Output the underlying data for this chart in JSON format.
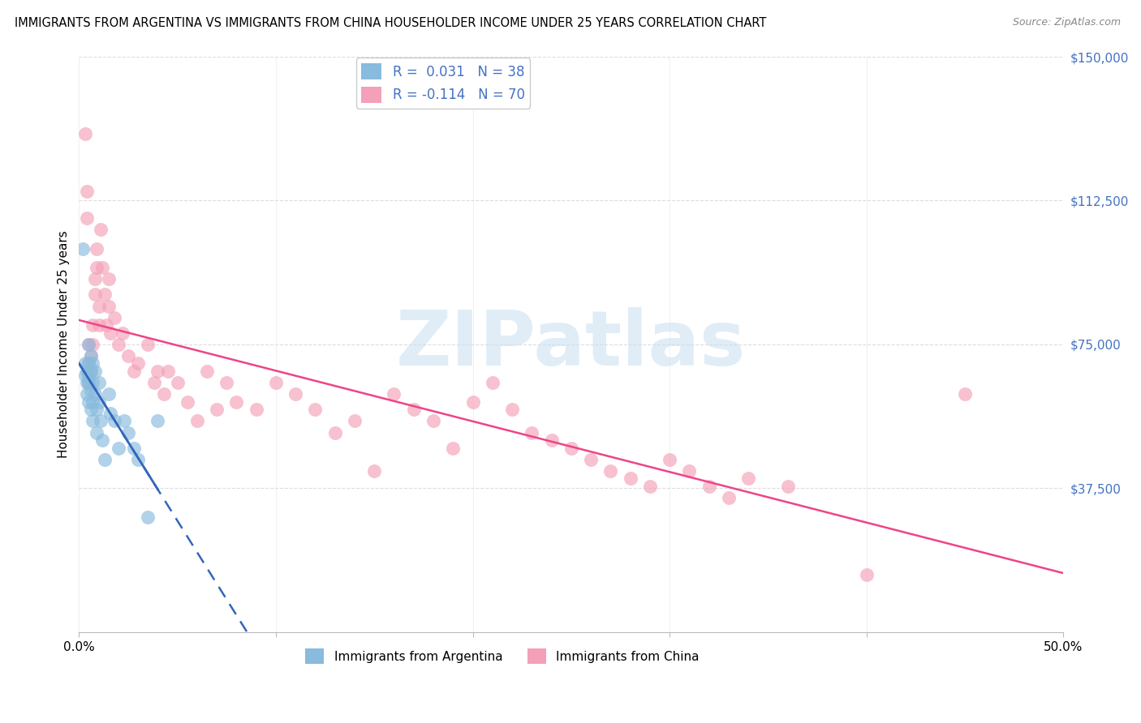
{
  "title": "IMMIGRANTS FROM ARGENTINA VS IMMIGRANTS FROM CHINA HOUSEHOLDER INCOME UNDER 25 YEARS CORRELATION CHART",
  "source": "Source: ZipAtlas.com",
  "ylabel": "Householder Income Under 25 years",
  "xlim": [
    0,
    0.5
  ],
  "ylim": [
    0,
    150000
  ],
  "yticks": [
    0,
    37500,
    75000,
    112500,
    150000
  ],
  "ytick_labels": [
    "",
    "$37,500",
    "$75,000",
    "$112,500",
    "$150,000"
  ],
  "xtick_left": "0.0%",
  "xtick_right": "50.0%",
  "argentina_R": 0.031,
  "argentina_N": 38,
  "china_R": -0.114,
  "china_N": 70,
  "argentina_color": "#88bbdd",
  "china_color": "#f4a0b8",
  "argentina_line_color": "#3366bb",
  "china_line_color": "#ee4488",
  "legend_label_argentina": "Immigrants from Argentina",
  "legend_label_china": "Immigrants from China",
  "argentina_x": [
    0.002,
    0.003,
    0.003,
    0.004,
    0.004,
    0.004,
    0.005,
    0.005,
    0.005,
    0.005,
    0.005,
    0.006,
    0.006,
    0.006,
    0.006,
    0.007,
    0.007,
    0.007,
    0.007,
    0.008,
    0.008,
    0.009,
    0.009,
    0.01,
    0.01,
    0.011,
    0.012,
    0.013,
    0.015,
    0.016,
    0.018,
    0.02,
    0.023,
    0.025,
    0.028,
    0.03,
    0.035,
    0.04
  ],
  "argentina_y": [
    100000,
    70000,
    67000,
    68000,
    65000,
    62000,
    75000,
    70000,
    67000,
    65000,
    60000,
    72000,
    68000,
    63000,
    58000,
    70000,
    65000,
    60000,
    55000,
    68000,
    62000,
    58000,
    52000,
    65000,
    60000,
    55000,
    50000,
    45000,
    62000,
    57000,
    55000,
    48000,
    55000,
    52000,
    48000,
    45000,
    30000,
    55000
  ],
  "china_x": [
    0.003,
    0.004,
    0.004,
    0.005,
    0.005,
    0.005,
    0.006,
    0.006,
    0.007,
    0.007,
    0.008,
    0.008,
    0.009,
    0.009,
    0.01,
    0.01,
    0.011,
    0.012,
    0.013,
    0.014,
    0.015,
    0.015,
    0.016,
    0.018,
    0.02,
    0.022,
    0.025,
    0.028,
    0.03,
    0.035,
    0.038,
    0.04,
    0.043,
    0.045,
    0.05,
    0.055,
    0.06,
    0.065,
    0.07,
    0.075,
    0.08,
    0.09,
    0.1,
    0.11,
    0.12,
    0.13,
    0.14,
    0.15,
    0.16,
    0.17,
    0.18,
    0.19,
    0.2,
    0.21,
    0.22,
    0.23,
    0.24,
    0.25,
    0.26,
    0.27,
    0.28,
    0.29,
    0.3,
    0.31,
    0.32,
    0.33,
    0.34,
    0.36,
    0.4,
    0.45
  ],
  "china_y": [
    130000,
    115000,
    108000,
    75000,
    70000,
    65000,
    72000,
    68000,
    80000,
    75000,
    92000,
    88000,
    100000,
    95000,
    85000,
    80000,
    105000,
    95000,
    88000,
    80000,
    92000,
    85000,
    78000,
    82000,
    75000,
    78000,
    72000,
    68000,
    70000,
    75000,
    65000,
    68000,
    62000,
    68000,
    65000,
    60000,
    55000,
    68000,
    58000,
    65000,
    60000,
    58000,
    65000,
    62000,
    58000,
    52000,
    55000,
    42000,
    62000,
    58000,
    55000,
    48000,
    60000,
    65000,
    58000,
    52000,
    50000,
    48000,
    45000,
    42000,
    40000,
    38000,
    45000,
    42000,
    38000,
    35000,
    40000,
    38000,
    15000,
    62000
  ],
  "watermark_text": "ZIPatlas",
  "watermark_color": "#c8dff0",
  "background_color": "#ffffff",
  "grid_color": "#dddddd",
  "tick_color": "#4472c4",
  "title_fontsize": 10.5,
  "source_fontsize": 9,
  "axis_fontsize": 11,
  "legend_fontsize": 12
}
